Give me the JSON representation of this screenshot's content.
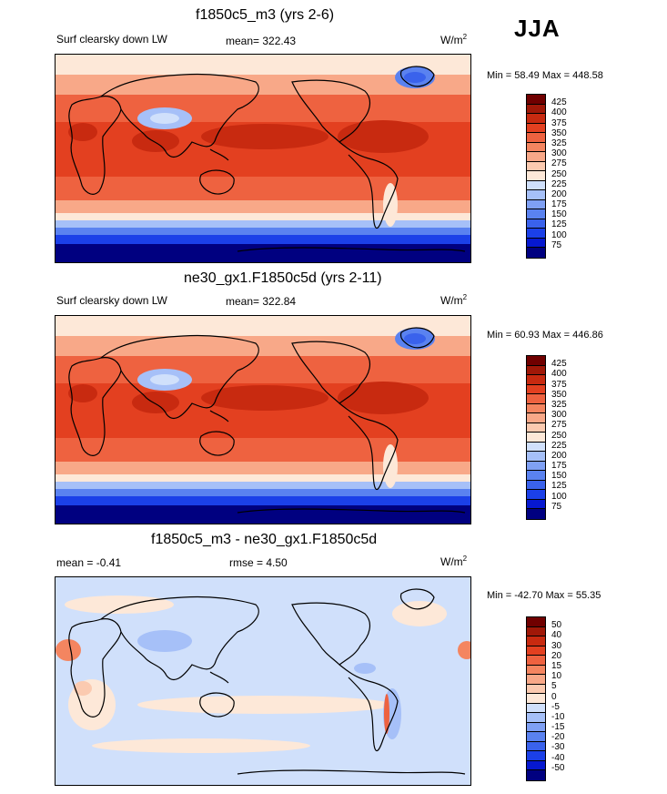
{
  "season_label": "JJA",
  "colors": {
    "abs": [
      "#000080",
      "#0618d0",
      "#1b40e8",
      "#3a62ec",
      "#5a82f0",
      "#7fa0f4",
      "#a6c0f8",
      "#d0e0fb",
      "#fde8d8",
      "#fbcab0",
      "#f8a888",
      "#f48560",
      "#ee6240",
      "#e34020",
      "#c82a10",
      "#a01808",
      "#700000"
    ],
    "diff": [
      "#000080",
      "#0618d0",
      "#1b40e8",
      "#3a62ec",
      "#5a82f0",
      "#7fa0f4",
      "#a6c0f8",
      "#d0e0fb",
      "#fde8d8",
      "#fbcab0",
      "#f8a888",
      "#f48560",
      "#ee6240",
      "#e34020",
      "#c82a10",
      "#a01808",
      "#700000"
    ]
  },
  "panels": [
    {
      "title": "f1850c5_m3 (yrs 2-6)",
      "left_label": "Surf clearsky down LW",
      "center_label": "mean= 322.43",
      "units": "W/m",
      "units_sup": "2",
      "minmax": "Min =  58.49 Max = 448.58"
    },
    {
      "title": "ne30_gx1.F1850c5d (yrs 2-11)",
      "left_label": "Surf clearsky down LW",
      "center_label": "mean= 322.84",
      "units": "W/m",
      "units_sup": "2",
      "minmax": "Min =  60.93 Max = 446.86"
    },
    {
      "title": "f1850c5_m3 - ne30_gx1.F1850c5d",
      "left_label": "mean =  -0.41",
      "center_label": "rmse =    4.50",
      "units": "W/m",
      "units_sup": "2",
      "minmax": "Min = -42.70 Max =  55.35"
    }
  ],
  "chart_data": [
    {
      "type": "heatmap",
      "title": "f1850c5_m3 (yrs 2-6)",
      "variable": "Surf clearsky down LW",
      "mean": 322.43,
      "min": 58.49,
      "max": 448.58,
      "units": "W/m2",
      "colorbar_levels": [
        "425",
        "400",
        "375",
        "350",
        "325",
        "300",
        "275",
        "250",
        "225",
        "200",
        "175",
        "150",
        "125",
        "100",
        "75"
      ]
    },
    {
      "type": "heatmap",
      "title": "ne30_gx1.F1850c5d (yrs 2-11)",
      "variable": "Surf clearsky down LW",
      "mean": 322.84,
      "min": 60.93,
      "max": 446.86,
      "units": "W/m2",
      "colorbar_levels": [
        "425",
        "400",
        "375",
        "350",
        "325",
        "300",
        "275",
        "250",
        "225",
        "200",
        "175",
        "150",
        "125",
        "100",
        "75"
      ]
    },
    {
      "type": "heatmap",
      "title": "f1850c5_m3 - ne30_gx1.F1850c5d",
      "mean": -0.41,
      "rmse": 4.5,
      "min": -42.7,
      "max": 55.35,
      "units": "W/m2",
      "colorbar_levels": [
        "50",
        "40",
        "30",
        "20",
        "15",
        "10",
        "5",
        "0",
        "-5",
        "-10",
        "-15",
        "-20",
        "-30",
        "-40",
        "-50"
      ]
    }
  ]
}
